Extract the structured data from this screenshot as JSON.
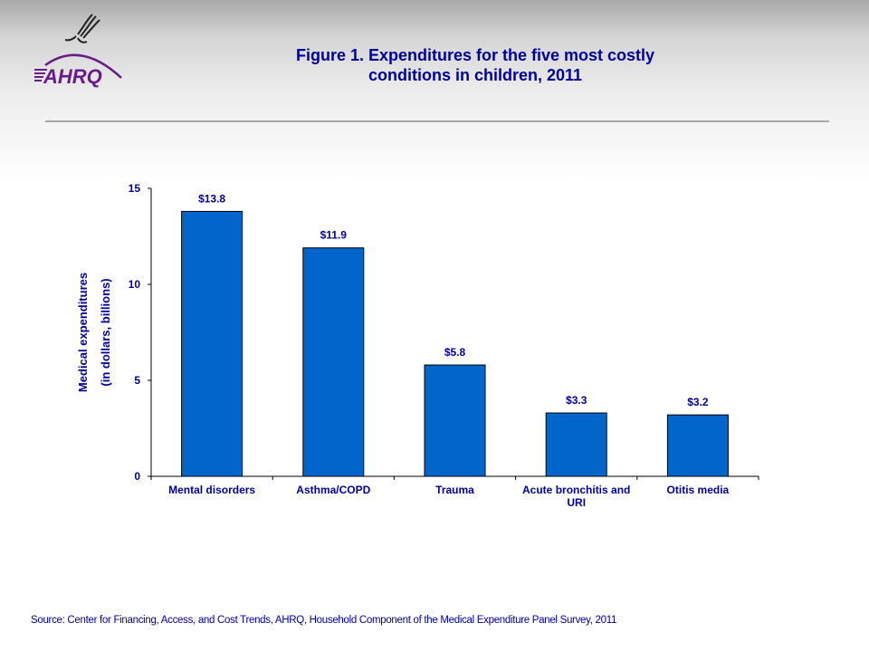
{
  "logo": {
    "org_text": "AHRQ",
    "emblem": "hhs-eagle-emblem"
  },
  "header": {
    "title_line1": "Figure 1. Expenditures for the five most costly",
    "title_line2": "conditions in children, 2011"
  },
  "chart_data": {
    "type": "bar",
    "title": "Figure 1. Expenditures for the five most costly conditions in children, 2011",
    "categories": [
      "Mental disorders",
      "Asthma/COPD",
      "Trauma",
      "Acute bronchitis and URI",
      "Otitis media"
    ],
    "category_lines": [
      [
        "Mental disorders"
      ],
      [
        "Asthma/COPD"
      ],
      [
        "Trauma"
      ],
      [
        "Acute bronchitis and",
        "URI"
      ],
      [
        "Otitis media"
      ]
    ],
    "values": [
      13.8,
      11.9,
      5.8,
      3.3,
      3.2
    ],
    "data_labels": [
      "$13.8",
      "$11.9",
      "$5.8",
      "$3.3",
      "$3.2"
    ],
    "xlabel": "",
    "ylabel_lines": [
      "Medical expenditures",
      "(in dollars, billions)"
    ],
    "ylabel": "Medical expenditures (in dollars, billions)",
    "ylim": [
      0,
      15
    ],
    "yticks": [
      0,
      5,
      10,
      15
    ],
    "grid": false,
    "legend": "none",
    "bar_color": "#0066cc",
    "text_color": "#000099"
  },
  "footer": {
    "source": "Source: Center for Financing, Access, and Cost Trends, AHRQ, Household Component of the Medical Expenditure Panel Survey,  2011"
  }
}
